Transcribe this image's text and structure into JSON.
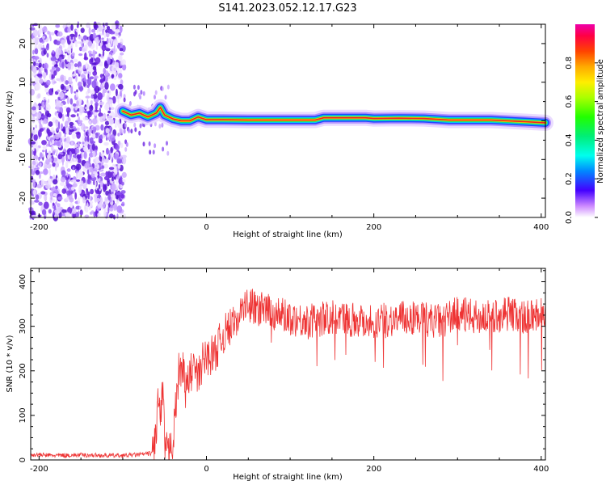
{
  "title": "S141.2023.052.12.17.G23",
  "colors": {
    "snr_line": "#ee3333",
    "ridge": "#ee2222",
    "scatter": "#7a20e8",
    "axis": "#000000"
  },
  "chart_data": [
    {
      "type": "heatmap",
      "title": "S141.2023.052.12.17.G23",
      "xlabel": "Height of straight line (km)",
      "ylabel": "Frequency (Hz)",
      "xlim": [
        -210,
        405
      ],
      "ylim": [
        -25,
        25
      ],
      "xticks": [
        -200,
        0,
        200,
        400
      ],
      "yticks": [
        -20,
        -10,
        0,
        10,
        20
      ],
      "noise_region_x": [
        -210,
        -98
      ],
      "transition_region_x": [
        -98,
        -45
      ],
      "ridge_points": [
        [
          -100,
          2.5
        ],
        [
          -90,
          1.5
        ],
        [
          -80,
          2.0
        ],
        [
          -70,
          1.0
        ],
        [
          -60,
          2.0
        ],
        [
          -55,
          3.5
        ],
        [
          -50,
          1.5
        ],
        [
          -40,
          0.5
        ],
        [
          -30,
          0.0
        ],
        [
          -20,
          0.0
        ],
        [
          -10,
          1.0
        ],
        [
          0,
          0.3
        ],
        [
          20,
          0.3
        ],
        [
          50,
          0.2
        ],
        [
          80,
          0.2
        ],
        [
          110,
          0.2
        ],
        [
          130,
          0.2
        ],
        [
          140,
          0.8
        ],
        [
          160,
          0.8
        ],
        [
          190,
          0.8
        ],
        [
          200,
          0.6
        ],
        [
          230,
          0.7
        ],
        [
          260,
          0.6
        ],
        [
          290,
          0.2
        ],
        [
          320,
          0.2
        ],
        [
          340,
          0.2
        ],
        [
          360,
          0.0
        ],
        [
          380,
          -0.2
        ],
        [
          405,
          -0.5
        ]
      ],
      "colorbar": {
        "label": "Normalized spectral amplitude",
        "range": [
          0,
          1
        ],
        "ticks": [
          "0.0",
          "0.2",
          "0.4",
          "0.6",
          "0.8"
        ],
        "colormap": "gist_ncar"
      }
    },
    {
      "type": "line",
      "xlabel": "Height of straight line (km)",
      "ylabel": "SNR (10 * v/v)",
      "xlim": [
        -210,
        405
      ],
      "ylim": [
        0,
        430
      ],
      "xticks": [
        -200,
        0,
        200,
        400
      ],
      "yticks": [
        0,
        100,
        200,
        300,
        400
      ],
      "grid": false,
      "series": [
        {
          "x": [
            -210,
            -180,
            -150,
            -120,
            -100,
            -80,
            -65,
            -60,
            -58,
            -55,
            -52,
            -50,
            -48,
            -45,
            -42,
            -40,
            -38,
            -35,
            -32,
            -30,
            -28,
            -25,
            -20,
            -15,
            -10,
            -5,
            0,
            10,
            20,
            30,
            40,
            50,
            60,
            80,
            100,
            120,
            150,
            180,
            200,
            220,
            250,
            280,
            300,
            320,
            340,
            360,
            380,
            400,
            405
          ],
          "y": [
            12,
            10,
            11,
            10,
            10,
            12,
            15,
            60,
            140,
            90,
            150,
            40,
            20,
            10,
            60,
            30,
            90,
            150,
            220,
            180,
            230,
            150,
            190,
            210,
            180,
            220,
            230,
            240,
            280,
            300,
            330,
            350,
            340,
            330,
            320,
            310,
            320,
            315,
            310,
            315,
            320,
            310,
            330,
            320,
            320,
            330,
            320,
            330,
            320
          ]
        }
      ]
    }
  ]
}
